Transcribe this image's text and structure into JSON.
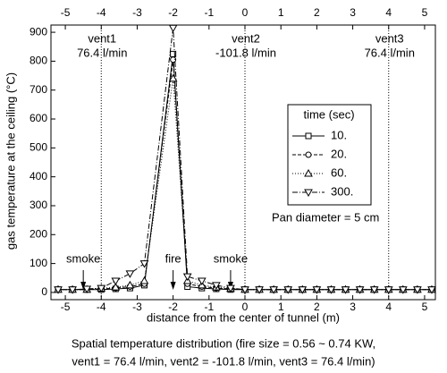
{
  "chart_data": {
    "type": "line",
    "x_label": "distance from the center of tunnel (m)",
    "y_label": "gas temperature at the ceiling (°C)",
    "caption": [
      "Spatial temperature distribution (fire size = 0.56 ~ 0.74 KW,",
      "vent1 = 76.4 l/min,  vent2 = -101.8 l/min, vent3 = 76.4 l/min)"
    ],
    "xlim": [
      -5.4,
      5.3
    ],
    "xticks": [
      -5,
      -4,
      -3,
      -2,
      -1,
      0,
      1,
      2,
      3,
      4,
      5
    ],
    "ylim": [
      -25,
      925
    ],
    "yticks": [
      0,
      100,
      200,
      300,
      400,
      500,
      600,
      700,
      800,
      900
    ],
    "legend_title": "time (sec)",
    "x": [
      -5.2,
      -4.8,
      -4.4,
      -4.0,
      -3.6,
      -3.2,
      -2.8,
      -2.0,
      -1.6,
      -1.2,
      -0.8,
      -0.4,
      0,
      0.4,
      0.8,
      1.2,
      1.6,
      2.0,
      2.4,
      2.8,
      3.2,
      3.6,
      4.0,
      4.4,
      4.8,
      5.2
    ],
    "series": [
      {
        "name": "10.",
        "color": "#000000",
        "marker": "square",
        "dash": "none",
        "values": [
          10,
          10,
          10,
          10,
          12,
          15,
          25,
          825,
          20,
          15,
          12,
          10,
          10,
          10,
          10,
          10,
          10,
          10,
          10,
          10,
          10,
          10,
          10,
          10,
          10,
          10
        ]
      },
      {
        "name": "20.",
        "color": "#000000",
        "marker": "circle",
        "dash": "4,2",
        "values": [
          10,
          10,
          10,
          12,
          15,
          20,
          30,
          805,
          30,
          20,
          15,
          12,
          10,
          10,
          10,
          10,
          10,
          10,
          10,
          10,
          10,
          10,
          10,
          10,
          10,
          10
        ]
      },
      {
        "name": "60.",
        "color": "#000000",
        "marker": "triangle-up",
        "dash": "1,2",
        "values": [
          10,
          10,
          10,
          14,
          18,
          25,
          40,
          740,
          40,
          25,
          18,
          13,
          10,
          10,
          10,
          10,
          10,
          10,
          10,
          10,
          10,
          10,
          10,
          10,
          10,
          10
        ]
      },
      {
        "name": "300.",
        "color": "#000000",
        "marker": "triangle-down",
        "dash": "6,2,1,2",
        "values": [
          10,
          10,
          12,
          15,
          40,
          65,
          100,
          915,
          55,
          40,
          25,
          15,
          10,
          10,
          10,
          10,
          10,
          10,
          10,
          10,
          10,
          10,
          10,
          10,
          10,
          10
        ]
      }
    ],
    "vents": [
      {
        "x": -4,
        "name": "vent1",
        "flow": "76.4 l/min"
      },
      {
        "x": 0,
        "name": "vent2",
        "flow": "-101.8 l/min"
      },
      {
        "x": 4,
        "name": "vent3",
        "flow": "76.4 l/min"
      }
    ],
    "arrows": [
      {
        "x": -4.5,
        "label": "smoke"
      },
      {
        "x": -2,
        "label": "fire"
      },
      {
        "x": -0.4,
        "label": "smoke"
      }
    ],
    "note": "Pan diameter = 5 cm"
  }
}
